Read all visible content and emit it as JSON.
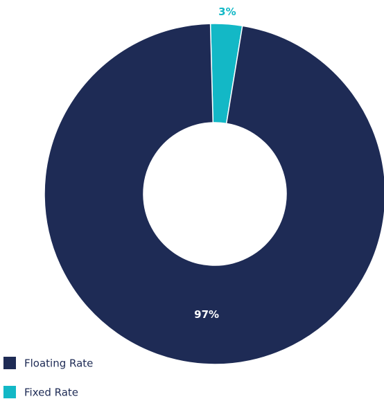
{
  "chart_data": {
    "type": "donut",
    "categories": [
      "Floating Rate",
      "Fixed Rate"
    ],
    "values": [
      97,
      3
    ],
    "value_labels": [
      "97%",
      "3%"
    ],
    "colors": [
      "#1e2b55",
      "#13b8c6"
    ],
    "legend": "bottom-left"
  }
}
